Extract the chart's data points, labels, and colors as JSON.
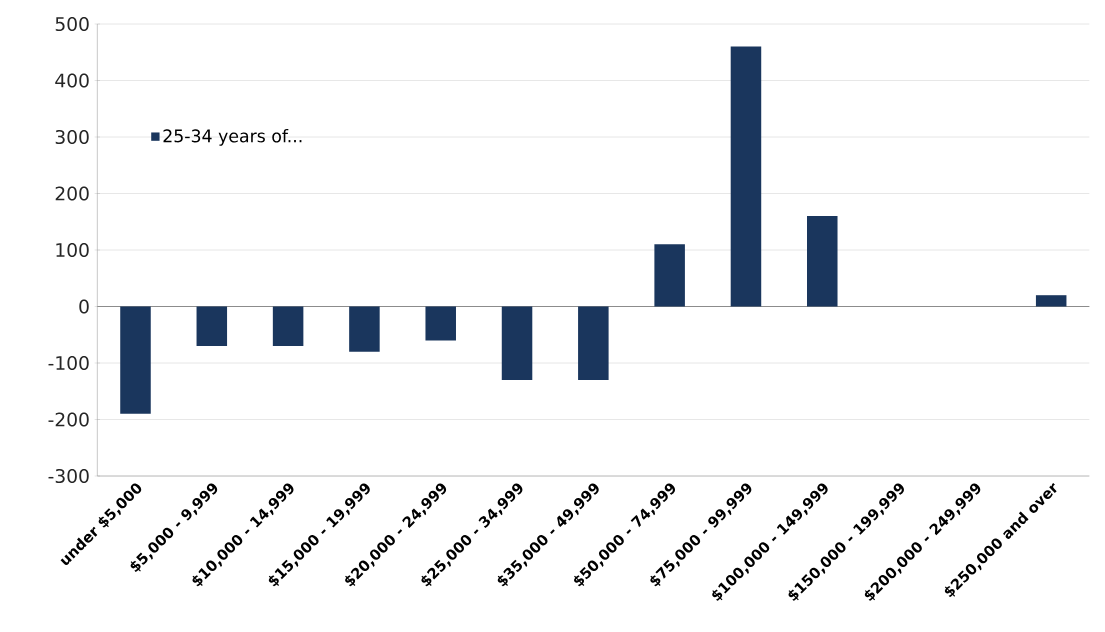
{
  "chart_data": {
    "type": "bar",
    "categories": [
      "under $5,000",
      "$5,000 - 9,999",
      "$10,000 - 14,999",
      "$15,000 - 19,999",
      "$20,000 - 24,999",
      "$25,000 - 34,999",
      "$35,000 - 49,999",
      "$50,000 - 74,999",
      "$75,000 - 99,999",
      "$100,000 - 149,999",
      "$150,000 - 199,999",
      "$200,000 - 249,999",
      "$250,000 and over"
    ],
    "series": [
      {
        "name": "25-34 years of...",
        "color": "#1a365d",
        "values": [
          -190,
          -70,
          -70,
          -80,
          -60,
          -130,
          -130,
          110,
          460,
          160,
          0,
          0,
          20
        ]
      }
    ],
    "ylim": [
      -300,
      500
    ],
    "yticks": [
      -300,
      -200,
      -100,
      0,
      100,
      200,
      300,
      400,
      500
    ],
    "grid": "y",
    "legend": "top left"
  }
}
